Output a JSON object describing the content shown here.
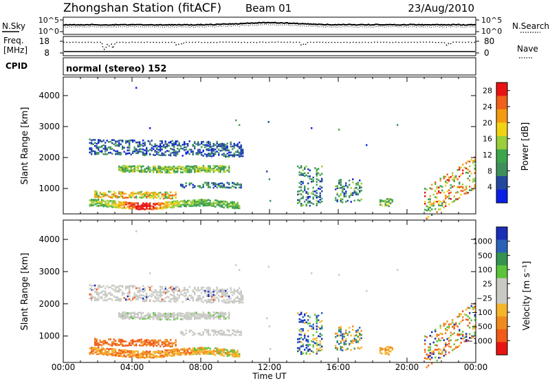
{
  "header": {
    "station": "Zhongshan Station (fitACF)",
    "beam": "Beam 01",
    "date": "23/Aug/2010"
  },
  "top_panels": {
    "nsky": {
      "label": "N.Sky",
      "yticks": [
        "10^5",
        "10^0"
      ]
    },
    "nsearch": {
      "label": "N.Search",
      "yticks": [
        "10^5",
        "10^0"
      ]
    },
    "freq": {
      "label_line1": "Freq.",
      "label_line2": "[MHz]",
      "yticks": [
        "18",
        "8"
      ]
    },
    "nave": {
      "label": "Nave",
      "yticks": [
        "80",
        "0"
      ]
    },
    "cpid": {
      "label": "CPID",
      "text": "normal (stereo) 152"
    }
  },
  "colors": {
    "power_scale": [
      "#0a1fe6",
      "#22479e",
      "#3f8f5a",
      "#3ea64a",
      "#9ace3b",
      "#f2d313",
      "#f49a10",
      "#f0601a",
      "#e81414"
    ],
    "velocity_scale": [
      "#1a2fb8",
      "#2a62b8",
      "#34934f",
      "#5cc43a",
      "#c9c9c4",
      "#c9c9c4",
      "#f4b52b",
      "#f08a1e",
      "#f25a18",
      "#e81414"
    ]
  },
  "chart_data": [
    {
      "type": "line",
      "name": "sounding-parameters",
      "x_label": "",
      "x_range_ut_hours": [
        0,
        24
      ],
      "series": [
        {
          "name": "N.Sky",
          "style": "solid",
          "shape": "near-constant high count, slight bulge near 12:00 UT"
        },
        {
          "name": "N.Search",
          "style": "dotted",
          "shape": "tracks N.Sky slightly below"
        },
        {
          "name": "Freq.",
          "units": "MHz",
          "ylim": [
            8,
            18
          ],
          "style": "dotted",
          "shape": "mostly near 17 MHz with dips near 02:30 UT"
        },
        {
          "name": "Nave",
          "ylim": [
            0,
            80
          ],
          "style": "solid",
          "shape": "flat low value"
        }
      ]
    },
    {
      "type": "heatmap",
      "name": "Power",
      "ylabel": "Slant Range [km]",
      "xlabel": "Time UT",
      "xlim": [
        0,
        24
      ],
      "ylim": [
        180,
        4600
      ],
      "x_tick_labels": [
        "00:00",
        "04:00",
        "08:00",
        "12:00",
        "16:00",
        "20:00",
        "00:00"
      ],
      "y_tick_labels": [
        "1000",
        "2000",
        "3000",
        "4000"
      ],
      "colorbar": {
        "label": "Power [dB]",
        "ticks": [
          "4",
          "8",
          "12",
          "16",
          "20",
          "24",
          "28"
        ],
        "range": [
          0,
          30
        ]
      },
      "regions": [
        {
          "t": [
            1.4,
            10.2
          ],
          "r": [
            380,
            680
          ],
          "level": "high (20-30 dB)",
          "peak_near": "04:30 UT, ~450 km"
        },
        {
          "t": [
            1.8,
            6.5
          ],
          "r": [
            650,
            950
          ],
          "level": "medium (12-24 dB)"
        },
        {
          "t": [
            3.2,
            9.5
          ],
          "r": [
            1480,
            1720
          ],
          "level": "medium (8-16 dB)"
        },
        {
          "t": [
            1.5,
            10.4
          ],
          "r": [
            1800,
            2700
          ],
          "level": "low (4-12 dB)"
        },
        {
          "t": [
            6.8,
            10.3
          ],
          "r": [
            1000,
            1250
          ],
          "level": "low-medium"
        },
        {
          "t": [
            13.6,
            15.0
          ],
          "r": [
            400,
            1800
          ],
          "level": "low-medium (4-16 dB)"
        },
        {
          "t": [
            15.8,
            17.4
          ],
          "r": [
            600,
            1400
          ],
          "level": "low-medium"
        },
        {
          "t": [
            18.4,
            19.2
          ],
          "r": [
            400,
            700
          ],
          "level": "medium"
        },
        {
          "t": [
            21.0,
            24.0
          ],
          "r": [
            300,
            1700
          ],
          "level": "medium-high (diagonal streaks)"
        }
      ]
    },
    {
      "type": "heatmap",
      "name": "Velocity",
      "ylabel": "Slant Range [km]",
      "xlabel": "Time UT",
      "xlim": [
        0,
        24
      ],
      "ylim": [
        180,
        4600
      ],
      "x_tick_labels": [
        "00:00",
        "04:00",
        "08:00",
        "12:00",
        "16:00",
        "20:00",
        "00:00"
      ],
      "y_tick_labels": [
        "1000",
        "2000",
        "3000",
        "4000"
      ],
      "colorbar": {
        "label": "Velocity [m s⁻¹]",
        "ticks": [
          "1000",
          "500",
          "100",
          "25",
          "−25",
          "−100",
          "−500",
          "−1000"
        ]
      },
      "regions": [
        {
          "t": [
            1.4,
            10.2
          ],
          "r": [
            380,
            950
          ],
          "level": "-100 to -500 m/s (orange)"
        },
        {
          "t": [
            1.5,
            10.4
          ],
          "r": [
            1400,
            2700
          ],
          "level": "ground scatter (grey, |v|<25)"
        },
        {
          "t": [
            13.5,
            24.0
          ],
          "r": [
            300,
            1800
          ],
          "level": "mixed positive/negative"
        }
      ]
    }
  ]
}
